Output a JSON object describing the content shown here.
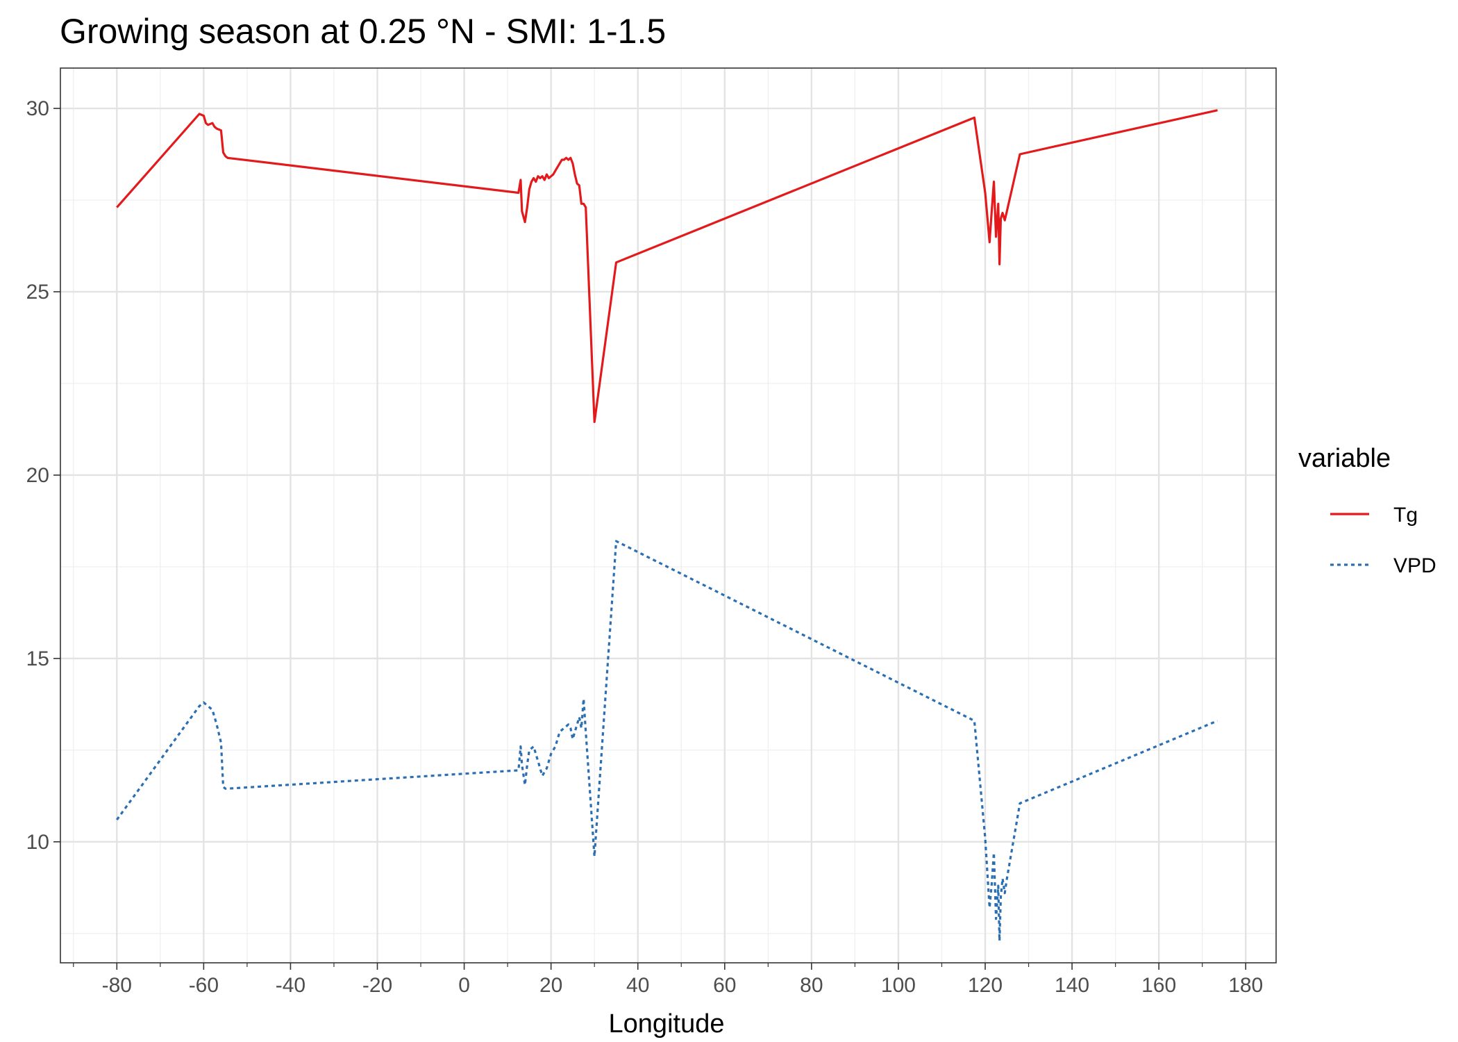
{
  "chart_data": {
    "type": "line",
    "title": "Growing season at 0.25 °N - SMI: 1-1.5",
    "xlabel": "Longitude",
    "ylabel": "",
    "xlim": [
      -93,
      187
    ],
    "ylim": [
      6.7,
      31.1
    ],
    "x_ticks": [
      -80,
      -60,
      -40,
      -20,
      0,
      20,
      40,
      60,
      80,
      100,
      120,
      140,
      160,
      180
    ],
    "x_tick_labels": [
      "-80",
      "-60",
      "-40",
      "-20",
      "0",
      "20",
      "40",
      "60",
      "80",
      "100",
      "120",
      "140",
      "160",
      "180"
    ],
    "y_ticks": [
      10,
      15,
      20,
      25,
      30
    ],
    "y_tick_labels": [
      "10",
      "15",
      "20",
      "25",
      "30"
    ],
    "x_minor_ticks": [
      -90,
      -70,
      -50,
      -30,
      -10,
      10,
      30,
      50,
      70,
      90,
      110,
      130,
      150,
      170
    ],
    "y_minor_ticks": [
      7.5,
      12.5,
      17.5,
      22.5,
      27.5
    ],
    "grid": true,
    "legend": {
      "title": "variable",
      "position": "right"
    },
    "series": [
      {
        "name": "Tg",
        "color": "#e31a1c",
        "line_style": "solid",
        "x": [
          -80,
          -61,
          -60,
          -59.5,
          -59,
          -58,
          -57.5,
          -57,
          -56,
          -55.5,
          -55,
          -54.5,
          12.5,
          13,
          13.3,
          14,
          14.5,
          15,
          15.5,
          16,
          16.5,
          17,
          17.5,
          18,
          18.5,
          19,
          19.5,
          20,
          20.5,
          21,
          21.5,
          22,
          22.5,
          23,
          23.5,
          24,
          24.5,
          25,
          25.5,
          26,
          26.5,
          27,
          27.5,
          28,
          30,
          35,
          117.5,
          120,
          121,
          121.5,
          122,
          122.5,
          123,
          123.3,
          123.6,
          124,
          124.5,
          125,
          128,
          173.5
        ],
        "y": [
          27.3,
          29.85,
          29.8,
          29.6,
          29.55,
          29.6,
          29.5,
          29.45,
          29.4,
          28.8,
          28.7,
          28.65,
          27.7,
          28.05,
          27.2,
          26.9,
          27.3,
          27.8,
          28.0,
          28.1,
          28.0,
          28.15,
          28.1,
          28.15,
          28.05,
          28.2,
          28.1,
          28.15,
          28.2,
          28.3,
          28.4,
          28.5,
          28.6,
          28.6,
          28.65,
          28.6,
          28.65,
          28.5,
          28.2,
          27.95,
          27.9,
          27.4,
          27.4,
          27.3,
          21.45,
          25.8,
          29.75,
          27.7,
          26.35,
          27.2,
          28.0,
          26.5,
          27.4,
          25.75,
          27.0,
          27.15,
          26.95,
          27.2,
          28.75,
          29.95
        ]
      },
      {
        "name": "VPD",
        "color": "#2b6fb2",
        "line_style": "dotted",
        "x": [
          -80,
          -61,
          -60,
          -59.5,
          -58,
          -57,
          -56,
          -55.5,
          -55,
          -54.5,
          12.5,
          13,
          13.3,
          14,
          14.5,
          15,
          16,
          17,
          18,
          19,
          20,
          21,
          22,
          23,
          24,
          24.5,
          25,
          25.5,
          26,
          26.5,
          27,
          27.5,
          28,
          30,
          35,
          117.5,
          120,
          121,
          121.5,
          122,
          122.5,
          123,
          123.3,
          123.6,
          124,
          124.5,
          125,
          128,
          173.5
        ],
        "y": [
          10.6,
          13.7,
          13.8,
          13.75,
          13.6,
          13.2,
          12.7,
          11.5,
          11.45,
          11.45,
          11.95,
          12.6,
          12.1,
          11.55,
          12.1,
          12.5,
          12.6,
          12.2,
          11.8,
          12.0,
          12.4,
          12.6,
          13.0,
          13.1,
          13.2,
          13.1,
          12.8,
          13.0,
          13.2,
          13.4,
          13.1,
          13.9,
          13.0,
          9.6,
          18.2,
          13.3,
          10.1,
          8.2,
          8.85,
          9.7,
          7.9,
          8.8,
          7.3,
          8.5,
          9.0,
          8.6,
          9.0,
          11.05,
          13.3
        ]
      }
    ]
  }
}
